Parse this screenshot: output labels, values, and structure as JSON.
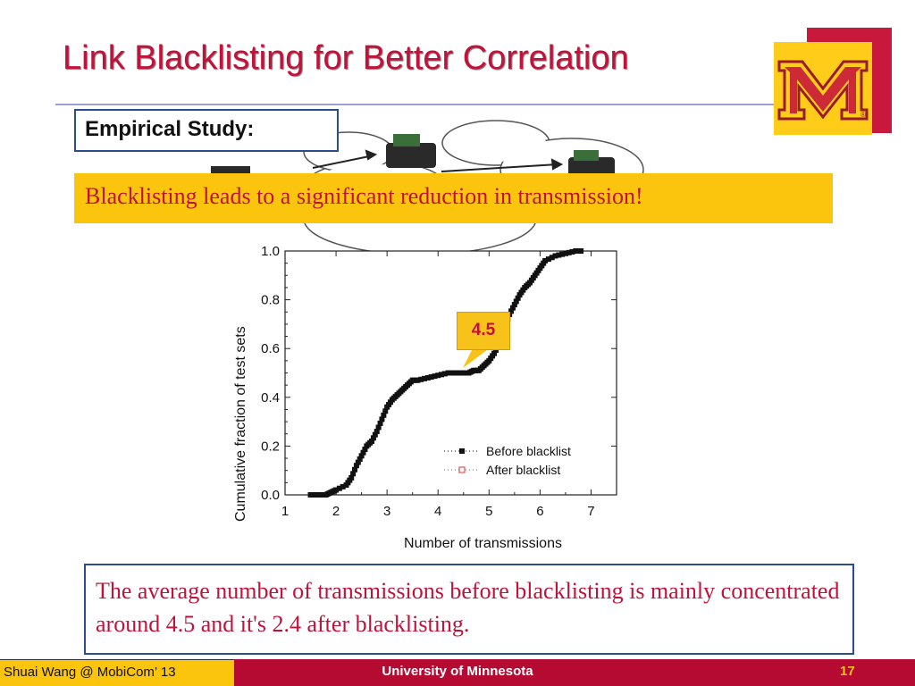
{
  "slide": {
    "title": "Link Blacklisting for Better Correlation",
    "section_label": "Empirical Study",
    "section_colon": ":",
    "banner_text": "Blacklisting leads to a significant reduction in transmission!",
    "callout_value": "4.5",
    "conclusion": "The average number of transmissions before blacklisting is mainly concentrated around 4.5 and it's 2.4 after blacklisting."
  },
  "logo": {
    "letter": "M",
    "mark": "®",
    "gold": "#ffcc1a",
    "maroon": "#c8183c"
  },
  "footer": {
    "author": "Shuai Wang @ MobiCom’ 13",
    "university": "University of Minnesota",
    "page_number": "17"
  },
  "icons": [
    "sensor-node-icon",
    "cloud-icon",
    "arrow-icon",
    "m-logo-icon"
  ],
  "colors": {
    "title_red": "#c0123a",
    "banner_gold": "#fbc50e",
    "footer_maroon": "#b50a32",
    "box_border": "#2a4d8f"
  },
  "chart_data": {
    "type": "line",
    "title": "",
    "xlabel": "Number of transmissions",
    "ylabel": "Cumulative fraction of test sets",
    "xlim": [
      1,
      7.5
    ],
    "ylim": [
      0,
      1.0
    ],
    "xticks": [
      "1",
      "2",
      "3",
      "4",
      "5",
      "6",
      "7"
    ],
    "yticks": [
      "0.0",
      "0.2",
      "0.4",
      "0.6",
      "0.8",
      "1.0"
    ],
    "legend_position": "bottom-right",
    "series": [
      {
        "name": "Before blacklist",
        "marker": "filled-square",
        "x": [
          1.5,
          1.65,
          1.8,
          1.9,
          2.0,
          2.2,
          2.3,
          2.4,
          2.5,
          2.6,
          2.7,
          2.8,
          2.9,
          3.0,
          3.1,
          3.2,
          3.3,
          3.4,
          3.5,
          3.6,
          3.8,
          4.0,
          4.2,
          4.4,
          4.6,
          4.7,
          4.8,
          4.9,
          5.0,
          5.1,
          5.2,
          5.3,
          5.4,
          5.5,
          5.6,
          5.7,
          5.8,
          5.9,
          6.0,
          6.1,
          6.3,
          6.5,
          6.7,
          6.8
        ],
        "y": [
          0.0,
          0.0,
          0.0,
          0.01,
          0.02,
          0.04,
          0.07,
          0.12,
          0.16,
          0.2,
          0.22,
          0.26,
          0.31,
          0.36,
          0.39,
          0.41,
          0.43,
          0.45,
          0.47,
          0.47,
          0.48,
          0.49,
          0.5,
          0.5,
          0.5,
          0.51,
          0.51,
          0.53,
          0.55,
          0.58,
          0.62,
          0.68,
          0.74,
          0.78,
          0.82,
          0.85,
          0.87,
          0.9,
          0.93,
          0.96,
          0.98,
          0.99,
          1.0,
          1.0
        ]
      },
      {
        "name": "After blacklist",
        "marker": "open-square",
        "x": [],
        "y": []
      }
    ]
  }
}
